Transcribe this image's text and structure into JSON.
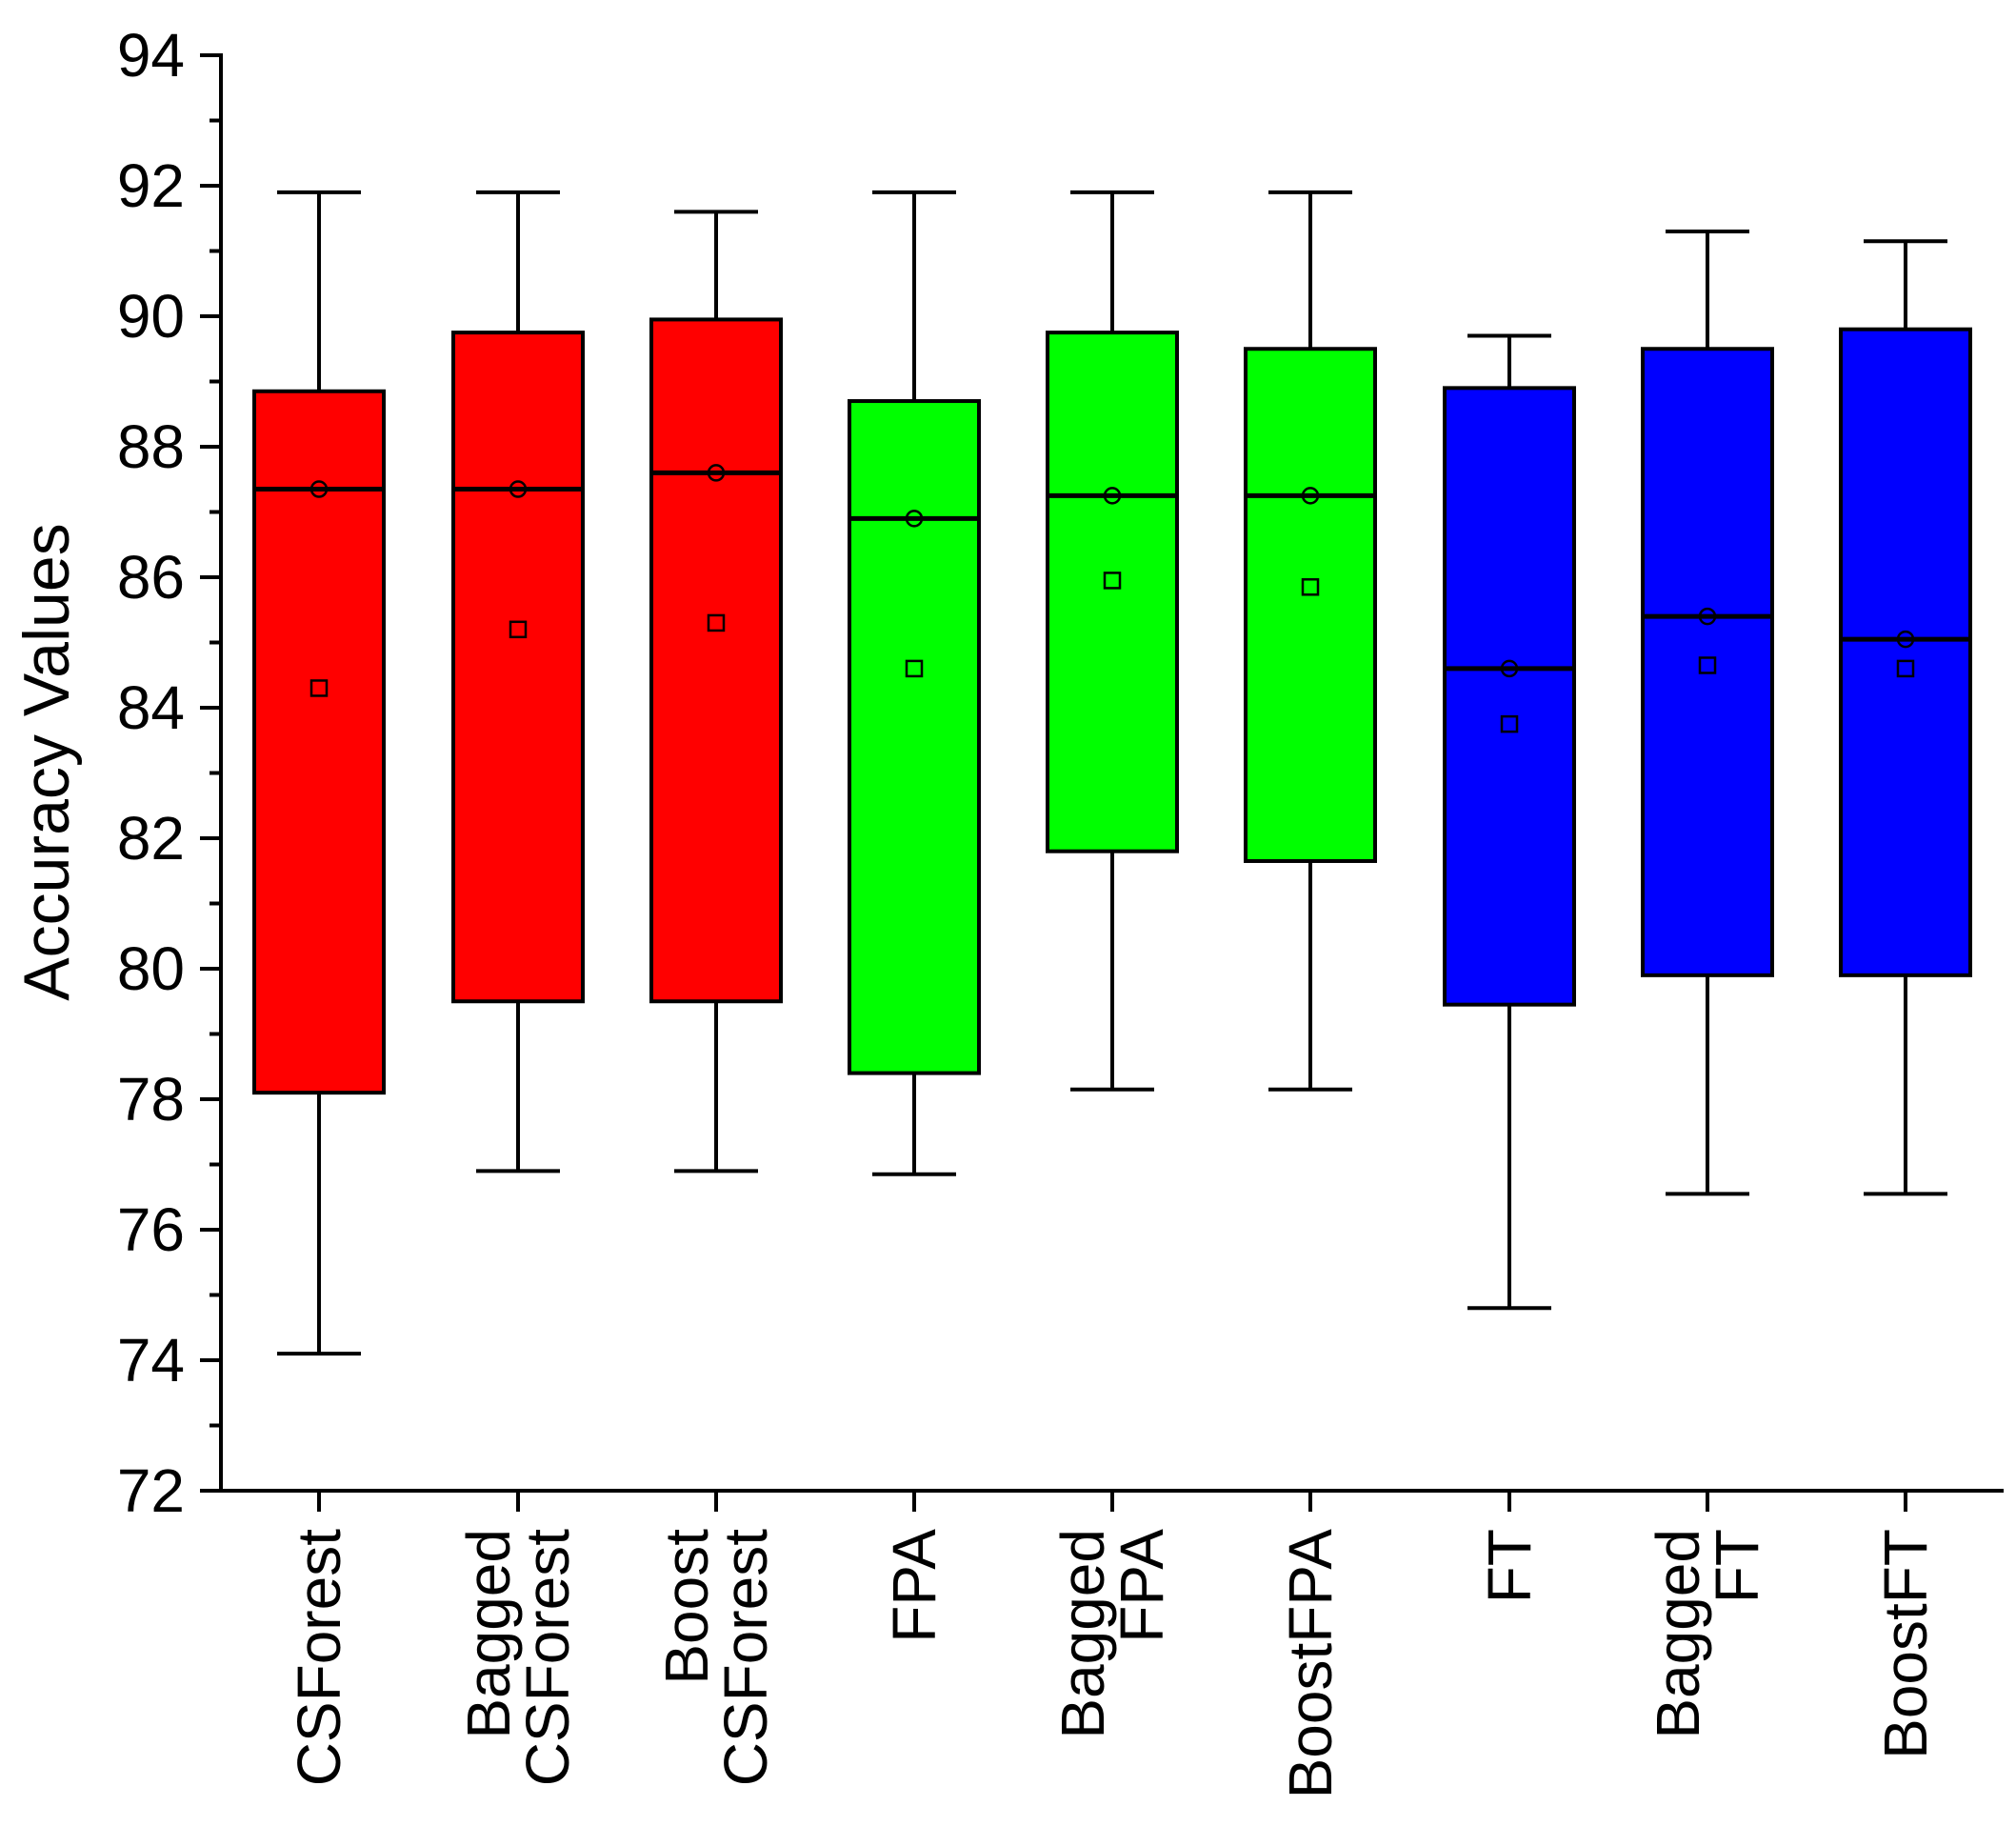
{
  "chart_data": {
    "type": "box",
    "title": "",
    "xlabel": "",
    "ylabel": "Accuracy Values",
    "ylim": [
      72,
      94
    ],
    "yticks": [
      72,
      74,
      76,
      78,
      80,
      82,
      84,
      86,
      88,
      90,
      92,
      94
    ],
    "ytick_labels": [
      "72",
      "74",
      "76",
      "78",
      "80",
      "82",
      "84",
      "86",
      "88",
      "90",
      "92",
      "94"
    ],
    "categories": [
      {
        "label_lines": [
          "CSForest"
        ],
        "color": "#ff0000",
        "min": 74.1,
        "q1": 78.1,
        "median": 87.35,
        "q3": 88.85,
        "max": 91.9,
        "mean": 84.3,
        "marker_circle": 87.35
      },
      {
        "label_lines": [
          "Bagged",
          "CSForest"
        ],
        "color": "#ff0000",
        "min": 76.9,
        "q1": 79.5,
        "median": 87.35,
        "q3": 89.75,
        "max": 91.9,
        "mean": 85.2,
        "marker_circle": 87.35
      },
      {
        "label_lines": [
          "Boost",
          "CSForest"
        ],
        "color": "#ff0000",
        "min": 76.9,
        "q1": 79.5,
        "median": 87.6,
        "q3": 89.95,
        "max": 91.6,
        "mean": 85.3,
        "marker_circle": 87.6
      },
      {
        "label_lines": [
          "FPA"
        ],
        "color": "#00ff00",
        "min": 76.85,
        "q1": 78.4,
        "median": 86.9,
        "q3": 88.7,
        "max": 91.9,
        "mean": 84.6,
        "marker_circle": 86.9
      },
      {
        "label_lines": [
          "Bagged",
          "FPA"
        ],
        "color": "#00ff00",
        "min": 78.15,
        "q1": 81.8,
        "median": 87.25,
        "q3": 89.75,
        "max": 91.9,
        "mean": 85.95,
        "marker_circle": 87.25
      },
      {
        "label_lines": [
          "BoostFPA"
        ],
        "color": "#00ff00",
        "min": 78.15,
        "q1": 81.65,
        "median": 87.25,
        "q3": 89.5,
        "max": 91.9,
        "mean": 85.85,
        "marker_circle": 87.25
      },
      {
        "label_lines": [
          "FT"
        ],
        "color": "#0000ff",
        "min": 74.8,
        "q1": 79.45,
        "median": 84.6,
        "q3": 88.9,
        "max": 89.7,
        "mean": 83.75,
        "marker_circle": 84.6
      },
      {
        "label_lines": [
          "Bagged",
          "FT"
        ],
        "color": "#0000ff",
        "min": 76.55,
        "q1": 79.9,
        "median": 85.4,
        "q3": 89.5,
        "max": 91.3,
        "mean": 84.65,
        "marker_circle": 85.4
      },
      {
        "label_lines": [
          "BoostFT"
        ],
        "color": "#0000ff",
        "min": 76.55,
        "q1": 79.9,
        "median": 85.05,
        "q3": 89.8,
        "max": 91.15,
        "mean": 84.6,
        "marker_circle": 85.05
      }
    ]
  }
}
